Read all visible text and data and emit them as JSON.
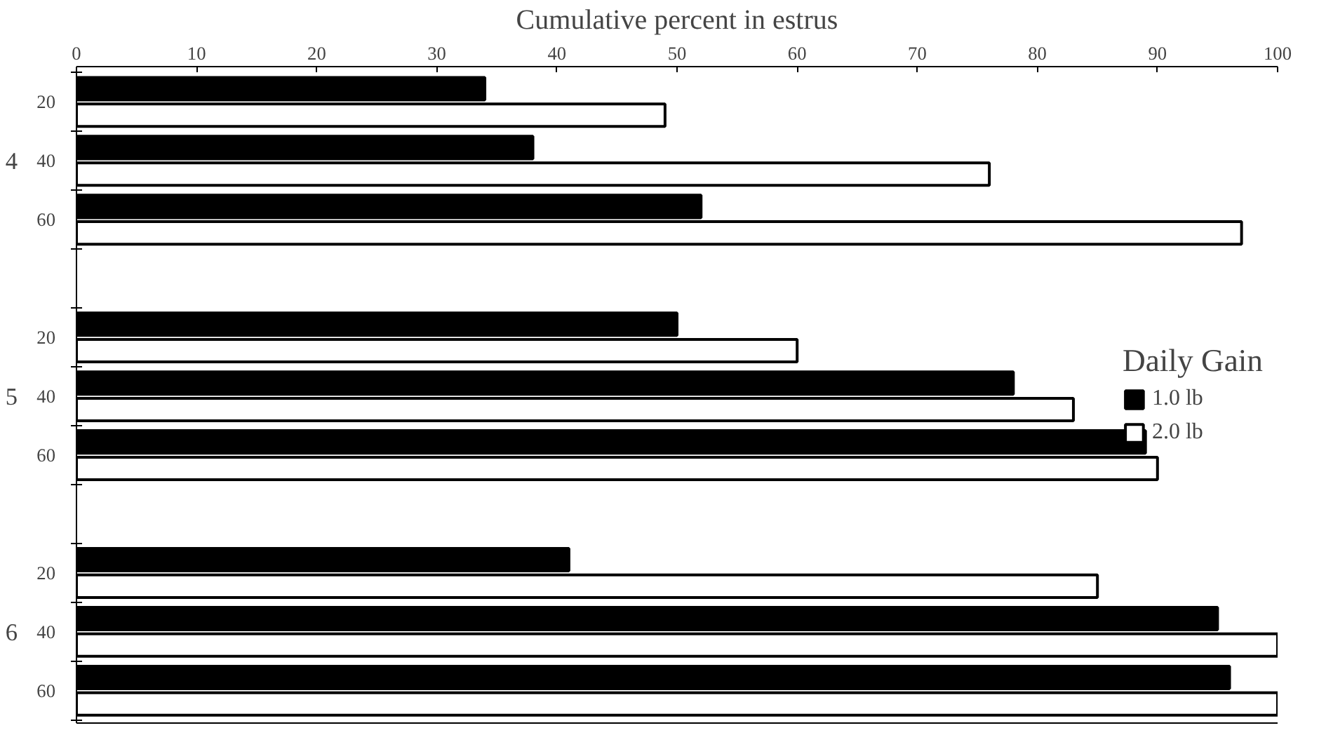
{
  "chart_data": {
    "type": "bar",
    "orientation": "horizontal",
    "xlabel": "Cumulative percent in estrus",
    "legend_title": "Daily Gain",
    "legend": "right",
    "categories": [
      "20",
      "40",
      "60",
      null,
      "20",
      "40",
      "60",
      null,
      "20",
      "40",
      "60"
    ],
    "annotations": [
      "4",
      "5",
      "6"
    ],
    "series": [
      {
        "name": "1.0 lb",
        "color": "#000000",
        "values": [
          34,
          38,
          52,
          null,
          50,
          78,
          89,
          null,
          41,
          95,
          96
        ]
      },
      {
        "name": "2.0 lb",
        "color": "#ffffff",
        "values": [
          49,
          76,
          97,
          null,
          60,
          83,
          90,
          null,
          85,
          100,
          100
        ]
      }
    ],
    "xlim": [
      0,
      100
    ],
    "xticks": [
      0,
      10,
      20,
      30,
      40,
      50,
      60,
      70,
      80,
      90,
      100
    ],
    "grid": false
  }
}
